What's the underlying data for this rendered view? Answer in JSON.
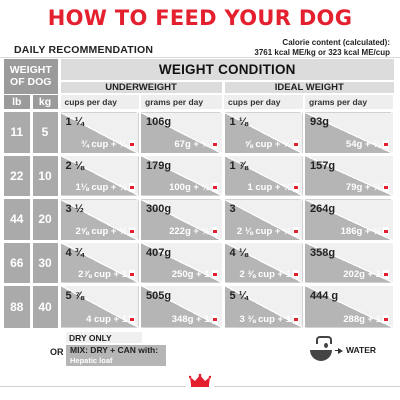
{
  "title": "HOW TO FEED YOUR DOG",
  "daily_recommendation": "DAILY RECOMMENDATION",
  "calorie_line1": "Calorie content (calculated):",
  "calorie_line2": "3761 kcal ME/kg or 323 kcal ME/cup",
  "table": {
    "weight_header": "WEIGHT OF DOG",
    "lb": "lb",
    "kg": "kg",
    "condition_header": "WEIGHT CONDITION",
    "underweight": "UNDERWEIGHT",
    "ideal_weight": "IDEAL WEIGHT",
    "cups_per_day": "cups per day",
    "grams_per_day": "grams per day",
    "rows": [
      {
        "lb": "11",
        "kg": "5",
        "uw_cups": "1 ¼",
        "uw_cups_mix": "¾ cup + ¼",
        "uw_grams": "106g",
        "uw_grams_mix": "67g + ¼",
        "iw_cups": "1 ⅛",
        "iw_cups_mix": "⅝ cup + ¼",
        "iw_grams": "93g",
        "iw_grams_mix": "54g + ¼"
      },
      {
        "lb": "22",
        "kg": "10",
        "uw_cups": "2 ⅛",
        "uw_cups_mix": "1⅛ cup + ½",
        "uw_grams": "179g",
        "uw_grams_mix": "100g + ½",
        "iw_cups": "1 ⅞",
        "iw_cups_mix": "1 cup + ½",
        "iw_grams": "157g",
        "iw_grams_mix": "79g + ½"
      },
      {
        "lb": "44",
        "kg": "20",
        "uw_cups": "3 ½",
        "uw_cups_mix": "2⅝ cup + ½",
        "uw_grams": "300g",
        "uw_grams_mix": "222g + ½",
        "iw_cups": "3",
        "iw_cups_mix": "2 ⅛ cup + ½",
        "iw_grams": "264g",
        "iw_grams_mix": "186g + ½"
      },
      {
        "lb": "66",
        "kg": "30",
        "uw_cups": "4 ¾",
        "uw_cups_mix": "2⅞ cup + 1",
        "uw_grams": "407g",
        "uw_grams_mix": "250g + 1",
        "iw_cups": "4 ⅛",
        "iw_cups_mix": "2 ⅜ cup + 1",
        "iw_grams": "358g",
        "iw_grams_mix": "202g + 1"
      },
      {
        "lb": "88",
        "kg": "40",
        "uw_cups": "5 ⅞",
        "uw_cups_mix": "4 cup + 1",
        "uw_grams": "505g",
        "uw_grams_mix": "348g + 1",
        "iw_cups": "5 ¼",
        "iw_cups_mix": "3 ⅜ cup + 1",
        "iw_grams": "444 g",
        "iw_grams_mix": "288g + 1"
      }
    ]
  },
  "legend": {
    "dry_only": "DRY ONLY",
    "or": "OR",
    "mix": "MIX: DRY + CAN with:",
    "mix_sub": "Hepatic loaf",
    "water": "WATER"
  },
  "colors": {
    "title_red": "#e4202f",
    "header_gray": "#9b9b9b",
    "mix_gray": "#b5b5b5",
    "dry_light": "#f0f0f0"
  }
}
